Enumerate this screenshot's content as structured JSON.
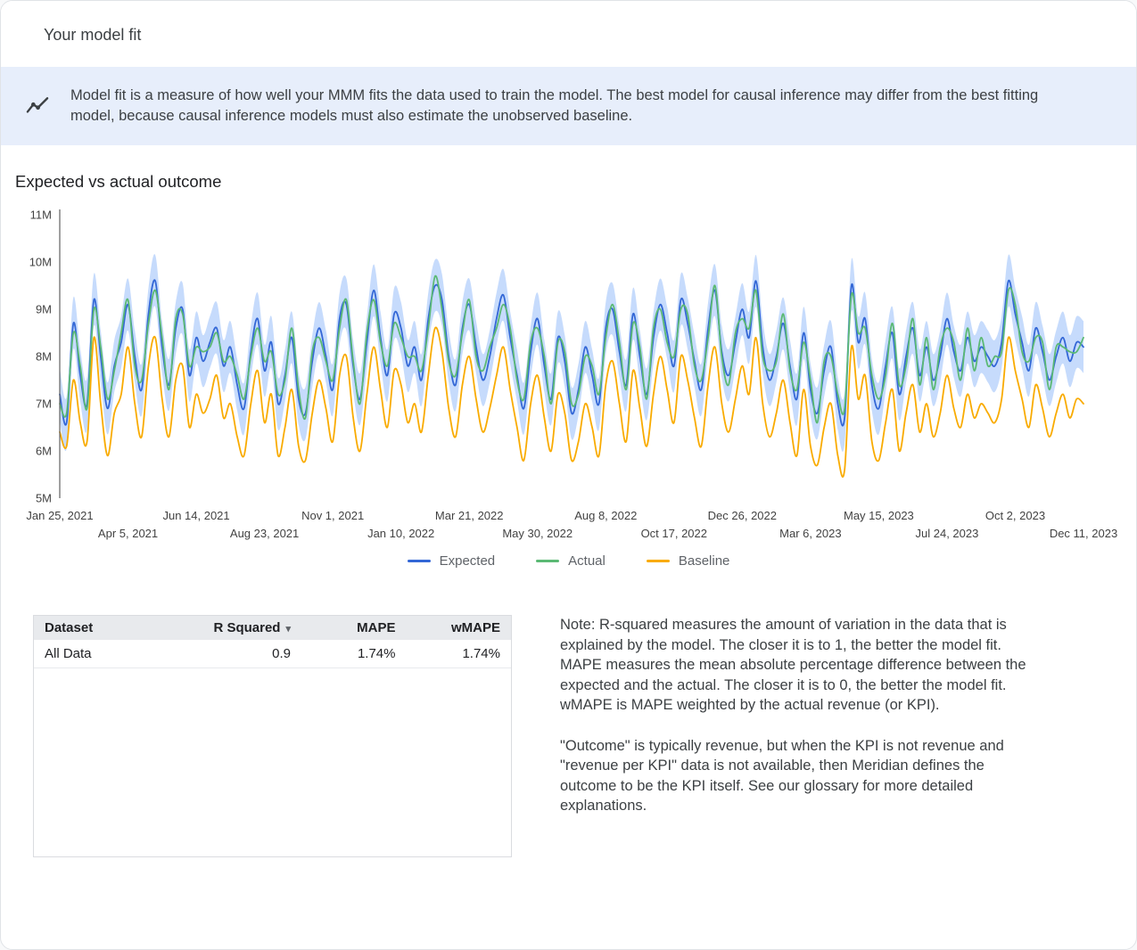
{
  "header": {
    "title": "Your model fit"
  },
  "banner": {
    "text": "Model fit is a measure of how well your MMM fits the data used to train the model. The best model for causal inference may differ from the best fitting model, because causal inference models must also estimate the unobserved baseline."
  },
  "chart_data": {
    "type": "line",
    "title": "Expected vs actual outcome",
    "x_start": "Jan 25, 2021",
    "x_frequency": "weekly",
    "n_points": 151,
    "ylim": [
      5,
      11
    ],
    "y_unit": "M",
    "grid": false,
    "legend_position": "bottom",
    "y_ticks": [
      {
        "label": "5M",
        "value": 5
      },
      {
        "label": "6M",
        "value": 6
      },
      {
        "label": "7M",
        "value": 7
      },
      {
        "label": "8M",
        "value": 8
      },
      {
        "label": "9M",
        "value": 9
      },
      {
        "label": "10M",
        "value": 10
      },
      {
        "label": "11M",
        "value": 11
      }
    ],
    "x_ticks": [
      {
        "label": "Jan 25, 2021",
        "week": 0,
        "row": 1
      },
      {
        "label": "Apr 5, 2021",
        "week": 10,
        "row": 2
      },
      {
        "label": "Jun 14, 2021",
        "week": 20,
        "row": 1
      },
      {
        "label": "Aug 23, 2021",
        "week": 30,
        "row": 2
      },
      {
        "label": "Nov 1, 2021",
        "week": 40,
        "row": 1
      },
      {
        "label": "Jan 10, 2022",
        "week": 50,
        "row": 2
      },
      {
        "label": "Mar 21, 2022",
        "week": 60,
        "row": 1
      },
      {
        "label": "May 30, 2022",
        "week": 70,
        "row": 2
      },
      {
        "label": "Aug 8, 2022",
        "week": 80,
        "row": 1
      },
      {
        "label": "Oct 17, 2022",
        "week": 90,
        "row": 2
      },
      {
        "label": "Dec 26, 2022",
        "week": 100,
        "row": 1
      },
      {
        "label": "Mar 6, 2023",
        "week": 110,
        "row": 2
      },
      {
        "label": "May 15, 2023",
        "week": 120,
        "row": 1
      },
      {
        "label": "Jul 24, 2023",
        "week": 130,
        "row": 2
      },
      {
        "label": "Oct 2, 2023",
        "week": 140,
        "row": 1
      },
      {
        "label": "Dec 11, 2023",
        "week": 150,
        "row": 2
      }
    ],
    "band": {
      "around": "Expected",
      "halfwidth": 0.55,
      "color": "#a8c7fa",
      "opacity": 0.65
    },
    "series": [
      {
        "name": "Expected",
        "color": "#3367d6",
        "values": [
          7.2,
          6.6,
          8.7,
          7.6,
          7.0,
          9.2,
          8.0,
          6.9,
          7.8,
          8.3,
          9.1,
          8.0,
          7.3,
          8.9,
          9.6,
          8.2,
          7.4,
          8.6,
          9.0,
          7.6,
          8.4,
          7.9,
          8.3,
          8.6,
          7.8,
          8.2,
          7.4,
          6.9,
          8.1,
          8.8,
          7.7,
          8.3,
          7.0,
          7.6,
          8.4,
          7.1,
          6.8,
          7.9,
          8.6,
          8.0,
          7.3,
          8.8,
          9.1,
          7.8,
          7.1,
          8.3,
          9.4,
          8.4,
          7.6,
          8.9,
          8.6,
          7.8,
          8.2,
          7.5,
          8.8,
          9.5,
          9.2,
          8.0,
          7.4,
          8.6,
          9.1,
          8.2,
          7.5,
          8.0,
          8.8,
          9.3,
          8.4,
          7.6,
          6.9,
          8.1,
          8.8,
          7.8,
          7.1,
          8.4,
          7.9,
          6.8,
          7.3,
          8.2,
          7.6,
          7.0,
          8.6,
          9.0,
          8.1,
          7.4,
          8.9,
          8.0,
          7.2,
          8.4,
          9.1,
          8.5,
          7.8,
          9.2,
          8.7,
          7.9,
          7.3,
          8.6,
          9.4,
          8.1,
          7.6,
          8.3,
          9.0,
          8.4,
          9.6,
          8.2,
          7.5,
          8.0,
          8.7,
          7.8,
          7.1,
          8.5,
          7.3,
          6.8,
          7.7,
          8.2,
          7.0,
          6.7,
          9.5,
          8.3,
          8.8,
          7.4,
          6.9,
          7.8,
          8.5,
          7.2,
          8.0,
          8.6,
          7.6,
          8.2,
          7.5,
          8.0,
          8.8,
          8.1,
          7.7,
          8.4,
          7.9,
          8.2,
          8.0,
          7.8,
          8.3,
          9.6,
          8.9,
          8.3,
          7.7,
          8.6,
          8.1,
          7.5,
          8.0,
          8.4,
          7.9,
          8.3,
          8.2
        ]
      },
      {
        "name": "Actual",
        "color": "#5bb974",
        "values": [
          7.0,
          6.8,
          8.5,
          7.8,
          6.9,
          9.0,
          8.2,
          7.1,
          7.7,
          8.5,
          9.2,
          7.8,
          7.5,
          8.7,
          9.4,
          8.4,
          7.3,
          8.8,
          8.9,
          7.8,
          8.2,
          8.1,
          8.2,
          8.5,
          7.9,
          8.0,
          7.6,
          7.1,
          8.0,
          8.6,
          7.9,
          8.1,
          7.2,
          7.5,
          8.6,
          7.3,
          6.7,
          8.1,
          8.4,
          7.9,
          7.5,
          8.6,
          9.2,
          7.9,
          7.0,
          8.5,
          9.2,
          8.3,
          7.8,
          8.7,
          8.4,
          8.0,
          8.0,
          7.7,
          8.6,
          9.7,
          9.0,
          7.9,
          7.6,
          8.5,
          9.2,
          8.0,
          7.7,
          8.2,
          8.6,
          9.1,
          8.6,
          7.5,
          7.1,
          8.3,
          8.6,
          8.0,
          7.0,
          8.3,
          8.1,
          7.0,
          7.2,
          8.0,
          7.8,
          7.2,
          8.4,
          9.1,
          8.3,
          7.3,
          8.7,
          8.2,
          7.1,
          8.6,
          9.0,
          8.3,
          8.0,
          9.0,
          8.9,
          7.8,
          7.5,
          8.4,
          9.5,
          8.0,
          7.4,
          8.5,
          8.8,
          8.6,
          9.4,
          8.0,
          7.7,
          7.9,
          8.9,
          7.7,
          7.3,
          8.3,
          7.5,
          6.6,
          7.9,
          8.0,
          7.2,
          6.9,
          9.3,
          8.5,
          8.6,
          7.6,
          7.1,
          7.6,
          8.7,
          7.4,
          7.8,
          8.8,
          7.4,
          8.4,
          7.3,
          8.2,
          8.6,
          8.3,
          7.5,
          8.6,
          7.7,
          8.4,
          7.8,
          8.0,
          8.1,
          9.4,
          9.1,
          8.1,
          7.9,
          8.4,
          8.3,
          7.3,
          8.2,
          8.2,
          8.1,
          8.1,
          8.4
        ]
      },
      {
        "name": "Baseline",
        "color": "#f9ab00",
        "values": [
          6.4,
          6.1,
          7.5,
          6.6,
          6.2,
          8.4,
          7.0,
          5.9,
          6.8,
          7.2,
          8.2,
          7.0,
          6.3,
          7.8,
          8.4,
          7.1,
          6.3,
          7.5,
          7.8,
          6.5,
          7.2,
          6.8,
          7.1,
          7.6,
          6.7,
          7.0,
          6.3,
          5.9,
          7.0,
          7.7,
          6.6,
          7.2,
          5.9,
          6.5,
          7.3,
          6.1,
          5.8,
          6.8,
          7.5,
          6.9,
          6.2,
          7.6,
          8.0,
          6.7,
          6.0,
          7.2,
          8.2,
          7.3,
          6.5,
          7.7,
          7.4,
          6.6,
          7.0,
          6.4,
          7.6,
          8.6,
          8.1,
          6.9,
          6.3,
          7.4,
          8.0,
          7.1,
          6.4,
          6.9,
          7.6,
          8.2,
          7.3,
          6.5,
          5.8,
          7.0,
          7.6,
          6.7,
          6.0,
          7.2,
          6.8,
          5.8,
          6.2,
          7.0,
          6.5,
          5.9,
          7.4,
          7.9,
          7.0,
          6.2,
          7.7,
          6.9,
          6.1,
          7.2,
          8.0,
          7.3,
          6.6,
          8.0,
          7.5,
          6.7,
          6.1,
          7.4,
          8.2,
          7.0,
          6.4,
          7.1,
          7.8,
          7.2,
          8.4,
          7.0,
          6.3,
          6.8,
          7.5,
          6.6,
          5.9,
          7.3,
          6.1,
          5.7,
          6.5,
          7.0,
          5.9,
          5.6,
          8.2,
          7.1,
          7.6,
          6.2,
          5.8,
          6.6,
          7.3,
          6.0,
          6.8,
          7.4,
          6.4,
          7.0,
          6.3,
          6.8,
          7.6,
          6.9,
          6.5,
          7.2,
          6.7,
          7.0,
          6.8,
          6.6,
          7.1,
          8.4,
          7.7,
          7.1,
          6.5,
          7.4,
          6.9,
          6.3,
          6.8,
          7.2,
          6.7,
          7.1,
          7.0
        ]
      }
    ]
  },
  "table": {
    "columns": [
      "Dataset",
      "R Squared",
      "MAPE",
      "wMAPE"
    ],
    "rows": [
      [
        "All Data",
        "0.9",
        "1.74%",
        "1.74%"
      ]
    ]
  },
  "icons": {
    "sort_arrow": "▾"
  },
  "notes": {
    "p1": "Note: R-squared measures the amount of variation in the data that is explained by the model. The closer it is to 1, the better the model fit. MAPE measures the mean absolute percentage difference between the expected and the actual. The closer it is to 0, the better the model fit. wMAPE is MAPE weighted by the actual revenue (or KPI).",
    "p2": "\"Outcome\" is typically revenue, but when the KPI is not revenue and \"revenue per KPI\" data is not available, then Meridian defines the outcome to be the KPI itself. See our glossary for more detailed explanations."
  }
}
